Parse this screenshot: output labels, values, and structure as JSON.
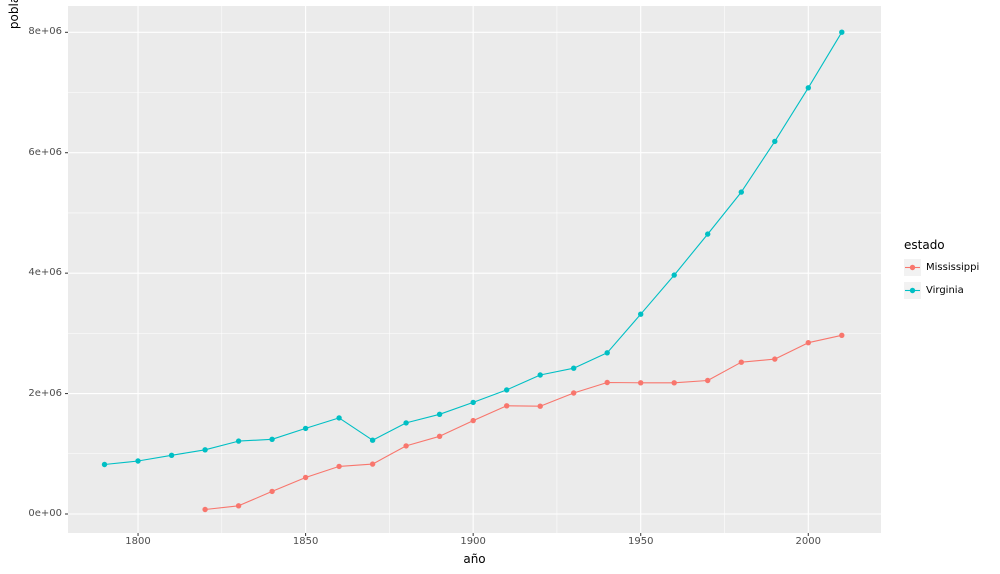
{
  "chart_data": {
    "type": "line",
    "title": "",
    "xlabel": "año",
    "ylabel": "poblacion",
    "grid": "on",
    "legend": {
      "title": "estado",
      "position": "right",
      "entries": [
        "Mississippi",
        "Virginia"
      ]
    },
    "x_axis": {
      "ticks": [
        1800,
        1850,
        1900,
        1950,
        2000
      ],
      "tick_labels": [
        "1800",
        "1850",
        "1900",
        "1950",
        "2000"
      ],
      "minor_ticks": [
        1825,
        1875,
        1925,
        1975
      ],
      "range": [
        1779.1,
        2021.7
      ]
    },
    "y_axis": {
      "ticks": [
        0,
        2000000,
        4000000,
        6000000,
        8000000
      ],
      "tick_labels": [
        "0e+00",
        "2e+06",
        "4e+06",
        "6e+06",
        "8e+06"
      ],
      "minor_ticks": [
        1000000,
        3000000,
        5000000,
        7000000
      ],
      "range": [
        -315600,
        8436800
      ]
    },
    "series": [
      {
        "name": "Mississippi",
        "color": "#F8766D",
        "x": [
          1820,
          1830,
          1840,
          1850,
          1860,
          1870,
          1880,
          1890,
          1900,
          1910,
          1920,
          1930,
          1940,
          1950,
          1960,
          1970,
          1980,
          1990,
          2000,
          2010
        ],
        "values": [
          75448,
          136621,
          375651,
          606526,
          791305,
          827922,
          1131597,
          1289600,
          1551270,
          1797114,
          1790618,
          2009821,
          2183796,
          2178914,
          2178141,
          2216912,
          2520638,
          2573216,
          2844658,
          2967297
        ]
      },
      {
        "name": "Virginia",
        "color": "#00BFC4",
        "x": [
          1790,
          1800,
          1810,
          1820,
          1830,
          1840,
          1850,
          1860,
          1870,
          1880,
          1890,
          1900,
          1910,
          1920,
          1930,
          1940,
          1950,
          1960,
          1970,
          1980,
          1990,
          2000,
          2010
        ],
        "values": [
          821287,
          880200,
          974600,
          1065366,
          1211405,
          1239797,
          1421661,
          1596318,
          1225163,
          1512565,
          1655980,
          1854184,
          2061612,
          2309187,
          2421851,
          2677773,
          3318680,
          3966949,
          4648494,
          5346818,
          6187358,
          7078515,
          8001024
        ]
      }
    ],
    "style": {
      "panel_bg": "#EBEBEB",
      "grid_color": "#FFFFFF",
      "axis_text_color": "#4D4D4D",
      "tick_mark_color": "#333333",
      "legend_key_bg": "#F2F2F2",
      "outer_bg": "#FFFFFF"
    }
  }
}
